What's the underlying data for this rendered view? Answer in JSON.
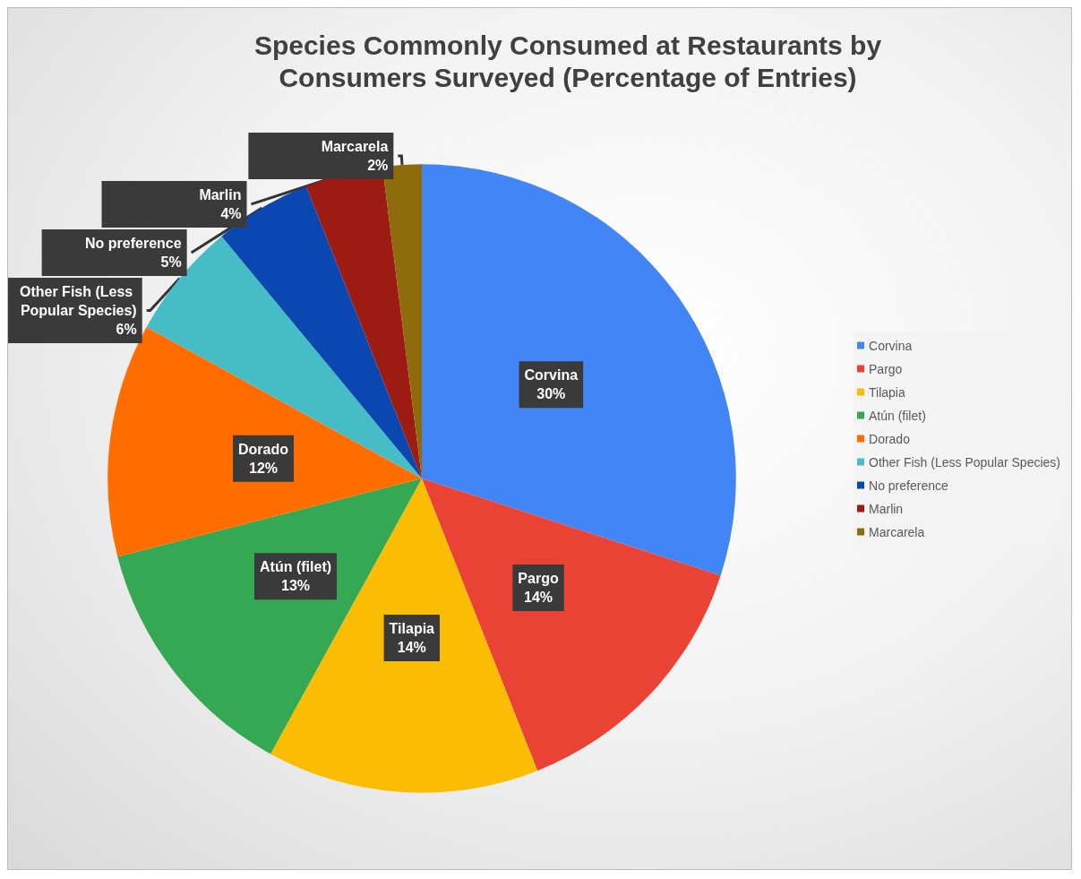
{
  "chart_data": {
    "type": "pie",
    "title": "Species Commonly Consumed at Restaurants by\nConsumers Surveyed (Percentage of Entries)",
    "categories": [
      "Corvina",
      "Pargo",
      "Tilapia",
      "Atún (filet)",
      "Dorado",
      "Other Fish (Less Popular Species)",
      "No preference",
      "Marlin",
      "Marcarela"
    ],
    "values": [
      30,
      14,
      14,
      13,
      12,
      6,
      5,
      4,
      2
    ],
    "colors": [
      "#4285f4",
      "#ea4335",
      "#fbbc04",
      "#34a853",
      "#ff6d01",
      "#46bdc6",
      "#0b47b0",
      "#9c1c13",
      "#8e6c0c"
    ],
    "value_labels": [
      "30%",
      "14%",
      "14%",
      "13%",
      "12%",
      "6%",
      "5%",
      "4%",
      "2%"
    ],
    "legend": "right"
  }
}
